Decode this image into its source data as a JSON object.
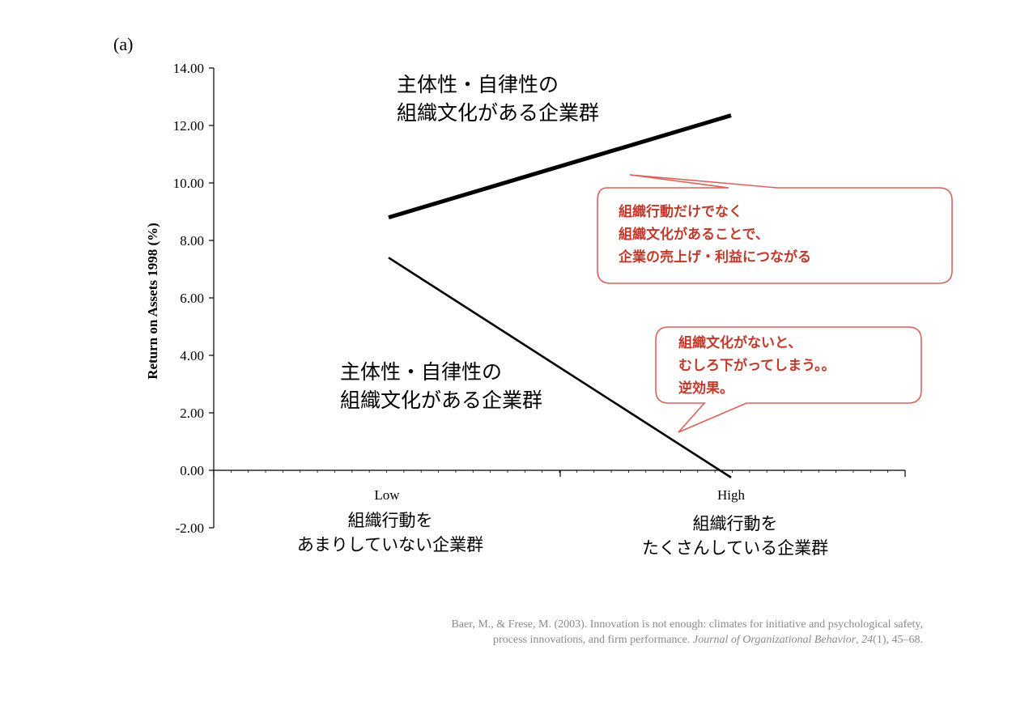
{
  "panel_label": "(a)",
  "chart_data": {
    "type": "line",
    "ylabel": "Return on Assets 1998 (%)",
    "ylim": [
      -2,
      14
    ],
    "yticks": [
      "14.00",
      "12.00",
      "10.00",
      "8.00",
      "6.00",
      "4.00",
      "2.00",
      "0.00",
      "-2.00"
    ],
    "ytick_values": [
      14,
      12,
      10,
      8,
      6,
      4,
      2,
      0,
      -2
    ],
    "categories": [
      "Low",
      "High"
    ],
    "category_sublabels": [
      [
        "組織行動を",
        "あまりしていない企業群"
      ],
      [
        "組織行動を",
        "たくさんしている企業群"
      ]
    ],
    "series": [
      {
        "name_lines": [
          "主体性・自律性の",
          "組織文化がある企業群"
        ],
        "values": [
          8.8,
          12.35
        ],
        "style": "thick"
      },
      {
        "name_lines": [
          "主体性・自律性の",
          "組織文化がある企業群"
        ],
        "values": [
          7.4,
          -0.25
        ],
        "style": "thin"
      }
    ],
    "grid": false
  },
  "callouts": [
    {
      "lines": [
        "組織行動だけでなく",
        "組織文化があることで、",
        "企業の売上げ・利益につながる"
      ]
    },
    {
      "lines": [
        "組織文化がないと、",
        "むしろ下がってしまう。。",
        "逆効果。"
      ]
    }
  ],
  "colors": {
    "callout": "#c0392b",
    "line": "#000000",
    "citation": "#8a8a8a"
  },
  "citation": {
    "line1": "Baer, M., & Frese, M. (2003). Innovation is not enough: climates for initiative and psychological safety,",
    "line2_pre": "process innovations, and firm performance. ",
    "line2_journal": "Journal of Organizational Behavior",
    "line2_sep": ", ",
    "line2_volume": "24",
    "line2_post": "(1), 45–68."
  }
}
